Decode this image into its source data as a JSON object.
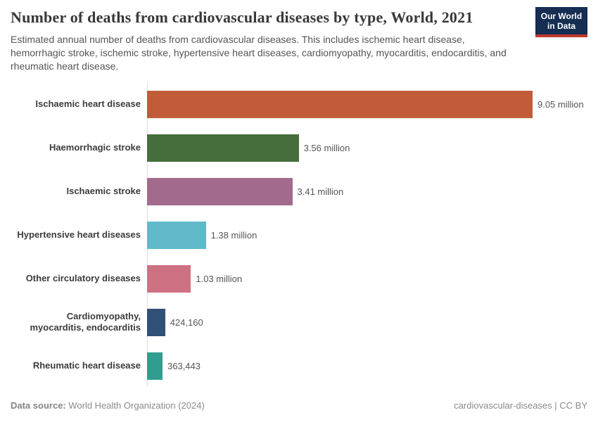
{
  "header": {
    "title": "Number of deaths from cardiovascular diseases by type, World, 2021",
    "subtitle": "Estimated annual number of deaths from cardiovascular diseases. This includes ischemic heart disease, hemorrhagic stroke, ischemic stroke, hypertensive heart diseases, cardiomyopathy, myocarditis, endocarditis, and rheumatic heart disease.",
    "logo": {
      "line1": "Our World",
      "line2": "in Data",
      "background": "#152E51",
      "stripe": "#C0392B"
    }
  },
  "chart_data": {
    "type": "bar",
    "orientation": "horizontal",
    "title": "Number of deaths from cardiovascular diseases by type, World, 2021",
    "categories": [
      "Ischaemic heart disease",
      "Haemorrhagic stroke",
      "Ischaemic stroke",
      "Hypertensive heart diseases",
      "Other circulatory diseases",
      "Cardiomyopathy, myocarditis, endocarditis",
      "Rheumatic heart disease"
    ],
    "values": [
      9050000,
      3560000,
      3410000,
      1380000,
      1030000,
      424160,
      363443
    ],
    "value_labels": [
      "9.05 million",
      "3.56 million",
      "3.41 million",
      "1.38 million",
      "1.03 million",
      "424,160",
      "363,443"
    ],
    "colors": [
      "#C15C39",
      "#466E3C",
      "#A26B8E",
      "#5FB9C9",
      "#CE7183",
      "#315078",
      "#2F9E90"
    ],
    "xlim": [
      0,
      9050000
    ],
    "grid": false,
    "legend": "none",
    "axis_line_color": "#dedede"
  },
  "footer": {
    "data_source_label": "Data source:",
    "data_source_value": " World Health Organization (2024)",
    "attribution": "cardiovascular-diseases | CC BY"
  }
}
